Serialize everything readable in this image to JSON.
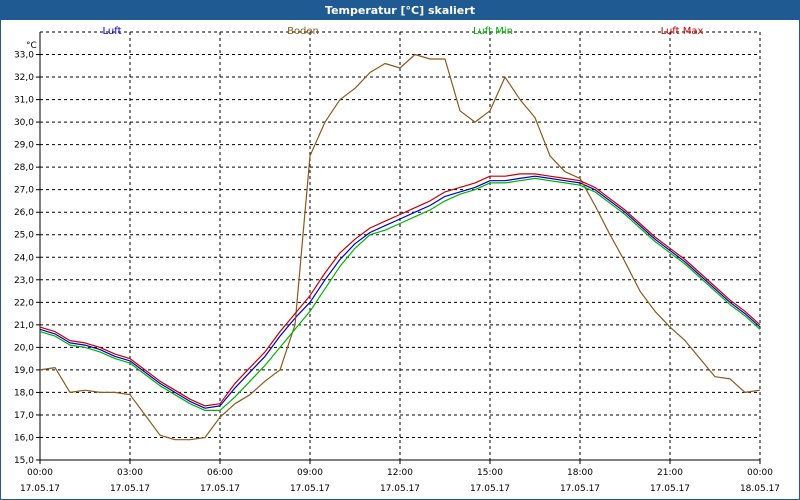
{
  "window": {
    "title": "Temperatur [°C] skaliert"
  },
  "colors": {
    "luft": "#0000c8",
    "boden": "#8b5a1e",
    "luft_min": "#00b400",
    "luft_max": "#c80000",
    "titlebar": "#1f5a93"
  },
  "chart_data": {
    "type": "line",
    "title": "Temperatur [°C] skaliert",
    "ylabel": "°C",
    "xlabel": "",
    "ylim": [
      15,
      34
    ],
    "xlim": [
      "17.05.17 00:00",
      "18.05.17 00:00"
    ],
    "grid": true,
    "legend_position": "top",
    "yticks": [
      "15,0",
      "16,0",
      "17,0",
      "18,0",
      "19,0",
      "20,0",
      "21,0",
      "22,0",
      "23,0",
      "24,0",
      "25,0",
      "26,0",
      "27,0",
      "28,0",
      "29,0",
      "30,0",
      "31,0",
      "32,0",
      "33,0"
    ],
    "xticks": [
      {
        "time": "00:00",
        "date": "17.05.17"
      },
      {
        "time": "03:00",
        "date": "17.05.17"
      },
      {
        "time": "06:00",
        "date": "17.05.17"
      },
      {
        "time": "09:00",
        "date": "17.05.17"
      },
      {
        "time": "12:00",
        "date": "17.05.17"
      },
      {
        "time": "15:00",
        "date": "17.05.17"
      },
      {
        "time": "18:00",
        "date": "17.05.17"
      },
      {
        "time": "21:00",
        "date": "17.05.17"
      },
      {
        "time": "00:00",
        "date": "18.05.17"
      }
    ],
    "x": [
      "00:00",
      "00:30",
      "01:00",
      "01:30",
      "02:00",
      "02:30",
      "03:00",
      "03:30",
      "04:00",
      "04:30",
      "05:00",
      "05:30",
      "06:00",
      "06:30",
      "07:00",
      "07:30",
      "08:00",
      "08:30",
      "09:00",
      "09:30",
      "10:00",
      "10:30",
      "11:00",
      "11:30",
      "12:00",
      "12:30",
      "13:00",
      "13:30",
      "14:00",
      "14:30",
      "15:00",
      "15:30",
      "16:00",
      "16:30",
      "17:00",
      "17:30",
      "18:00",
      "18:30",
      "19:00",
      "19:30",
      "20:00",
      "20:30",
      "21:00",
      "21:30",
      "22:00",
      "22:30",
      "23:00",
      "23:30",
      "24:00"
    ],
    "series": [
      {
        "name": "Luft",
        "color": "#0000c8",
        "values": [
          20.8,
          20.6,
          20.2,
          20.1,
          19.9,
          19.6,
          19.4,
          18.9,
          18.4,
          18.0,
          17.6,
          17.3,
          17.4,
          18.2,
          18.9,
          19.6,
          20.5,
          21.3,
          22.0,
          23.0,
          23.9,
          24.6,
          25.1,
          25.4,
          25.7,
          26.0,
          26.3,
          26.7,
          26.9,
          27.1,
          27.4,
          27.4,
          27.5,
          27.6,
          27.5,
          27.4,
          27.3,
          27.0,
          26.5,
          26.0,
          25.4,
          24.8,
          24.3,
          23.8,
          23.2,
          22.6,
          22.0,
          21.5,
          20.9
        ]
      },
      {
        "name": "Boden",
        "color": "#8b5a1e",
        "values": [
          19.0,
          19.1,
          18.0,
          18.1,
          18.0,
          18.0,
          17.9,
          17.0,
          16.1,
          15.9,
          15.9,
          16.0,
          16.9,
          17.5,
          17.9,
          18.5,
          19.0,
          21.0,
          28.5,
          30.0,
          31.0,
          31.5,
          32.2,
          32.6,
          32.4,
          33.0,
          32.8,
          32.8,
          30.5,
          30.0,
          30.5,
          32.0,
          31.0,
          30.2,
          28.5,
          27.8,
          27.5,
          26.3,
          25.0,
          23.8,
          22.5,
          21.6,
          20.9,
          20.3,
          19.5,
          18.7,
          18.6,
          18.0,
          18.1
        ]
      },
      {
        "name": "Luft Min",
        "color": "#00b400",
        "values": [
          20.7,
          20.5,
          20.1,
          20.0,
          19.8,
          19.5,
          19.3,
          18.8,
          18.3,
          17.9,
          17.5,
          17.2,
          17.2,
          17.8,
          18.5,
          19.2,
          20.0,
          20.8,
          21.6,
          22.6,
          23.6,
          24.4,
          25.0,
          25.2,
          25.5,
          25.8,
          26.1,
          26.5,
          26.8,
          27.0,
          27.3,
          27.3,
          27.4,
          27.5,
          27.4,
          27.3,
          27.2,
          26.9,
          26.4,
          25.9,
          25.3,
          24.7,
          24.2,
          23.7,
          23.1,
          22.5,
          21.9,
          21.4,
          20.8
        ]
      },
      {
        "name": "Luft Max",
        "color": "#c80000",
        "values": [
          20.9,
          20.7,
          20.3,
          20.2,
          20.0,
          19.7,
          19.5,
          19.0,
          18.5,
          18.1,
          17.7,
          17.4,
          17.5,
          18.4,
          19.1,
          19.8,
          20.7,
          21.5,
          22.3,
          23.3,
          24.2,
          24.8,
          25.3,
          25.6,
          25.9,
          26.2,
          26.5,
          26.9,
          27.1,
          27.3,
          27.6,
          27.6,
          27.7,
          27.7,
          27.6,
          27.5,
          27.4,
          27.1,
          26.6,
          26.1,
          25.5,
          24.9,
          24.4,
          23.9,
          23.3,
          22.7,
          22.1,
          21.6,
          21.0
        ]
      }
    ]
  }
}
